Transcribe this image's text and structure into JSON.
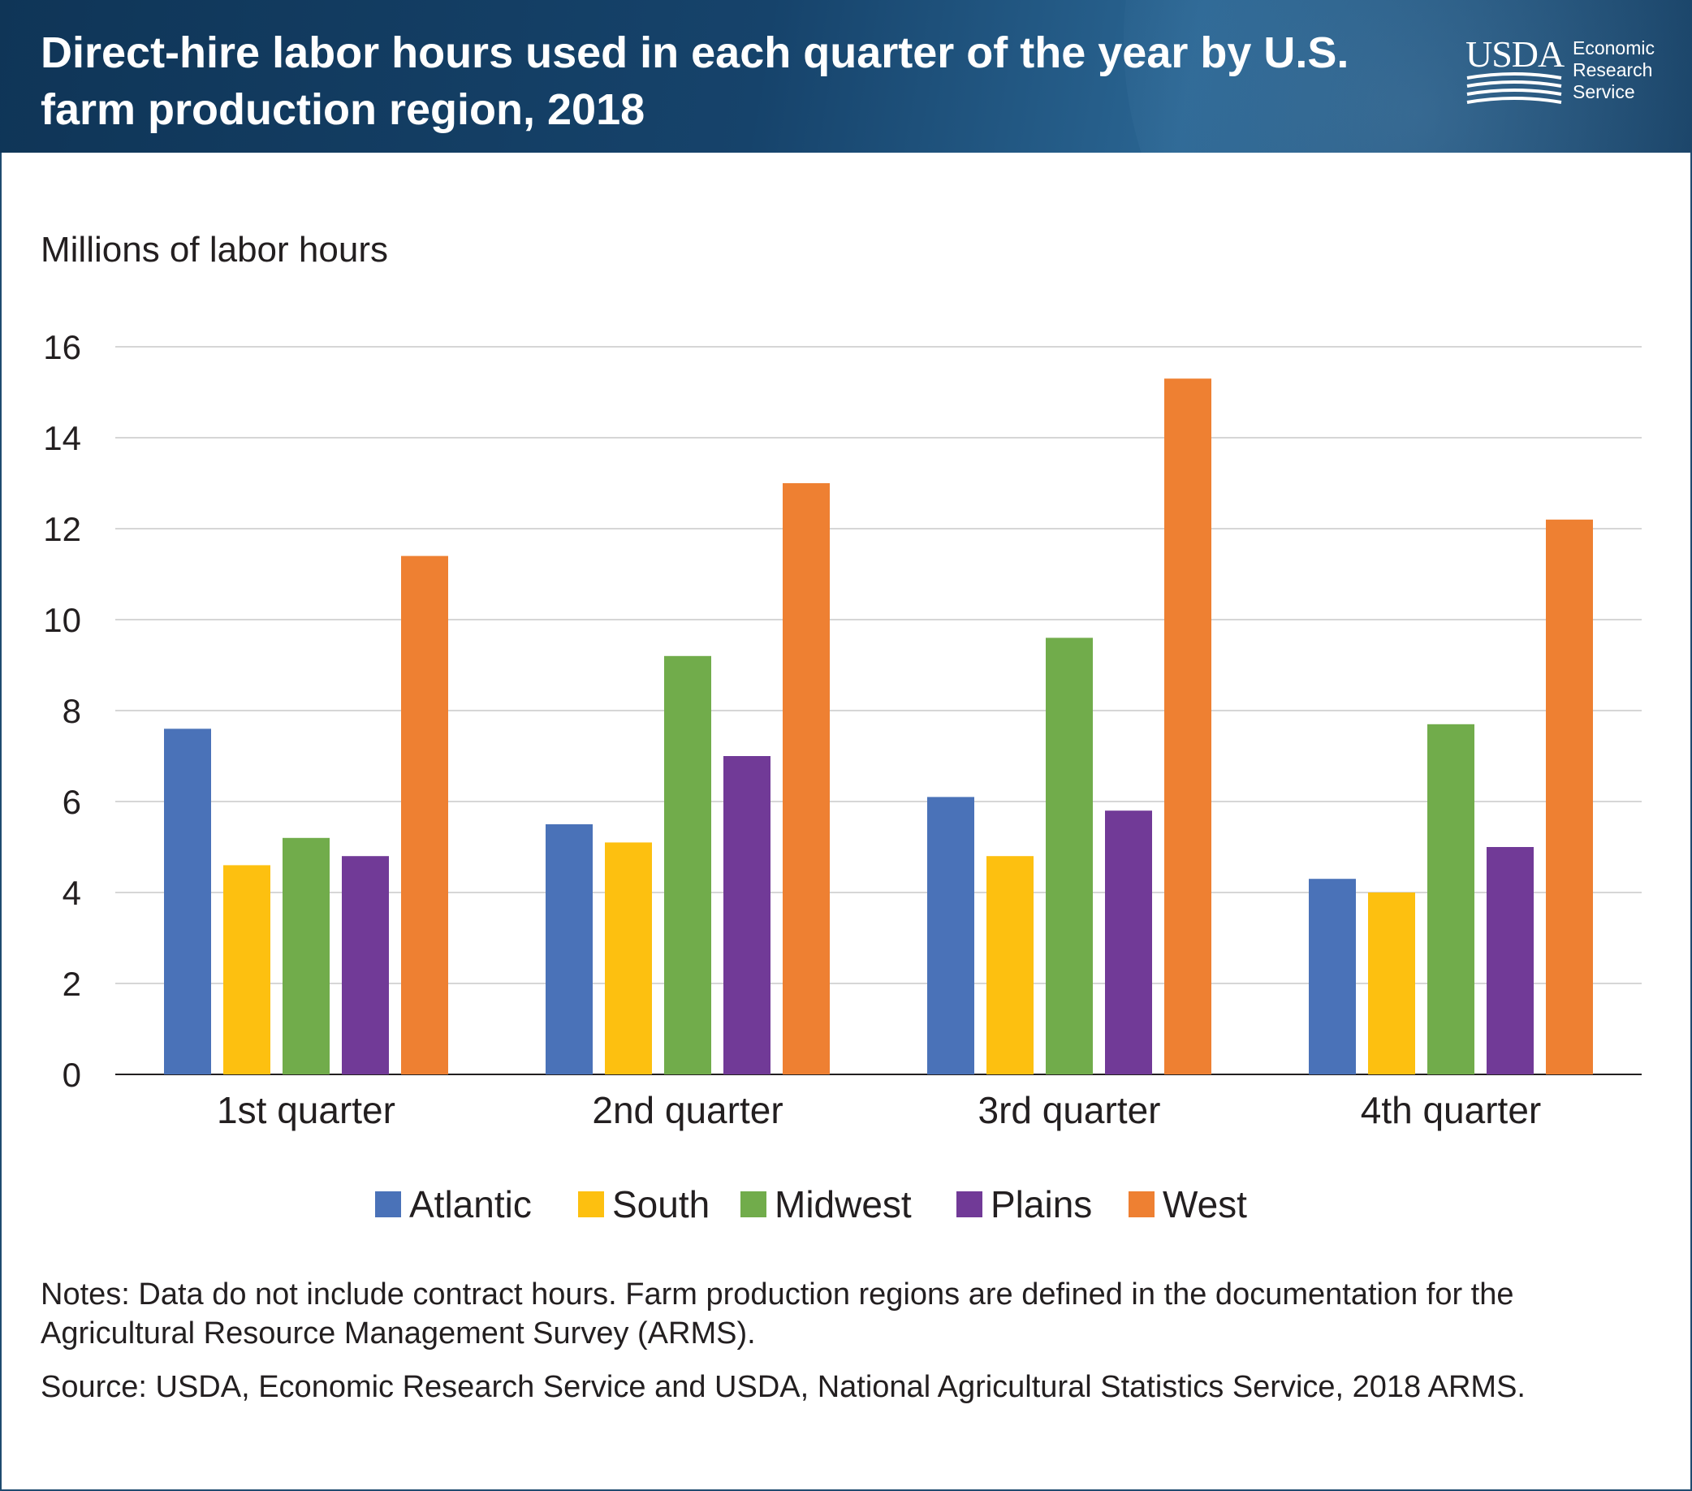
{
  "header": {
    "title": "Direct-hire labor hours used in each quarter of the year by U.S. farm production region, 2018",
    "logo": {
      "agency": "USDA",
      "lines": [
        "Economic",
        "Research",
        "Service"
      ]
    }
  },
  "chart_data": {
    "type": "bar",
    "title": "Direct-hire labor hours used in each quarter of the year by U.S. farm production region, 2018",
    "ylabel": "Millions of labor hours",
    "xlabel": "",
    "ylim": [
      0,
      16
    ],
    "yticks": [
      0,
      2,
      4,
      6,
      8,
      10,
      12,
      14,
      16
    ],
    "grid": true,
    "legend_position": "bottom",
    "categories": [
      "1st quarter",
      "2nd quarter",
      "3rd quarter",
      "4th quarter"
    ],
    "series": [
      {
        "name": "Atlantic",
        "color": "#4a72b8",
        "values": [
          7.6,
          5.5,
          6.1,
          4.3
        ]
      },
      {
        "name": "South",
        "color": "#fdc010",
        "values": [
          4.6,
          5.1,
          4.8,
          4.0
        ]
      },
      {
        "name": "Midwest",
        "color": "#71ac4b",
        "values": [
          5.2,
          9.2,
          9.6,
          7.7
        ]
      },
      {
        "name": "Plains",
        "color": "#713a97",
        "values": [
          4.8,
          7.0,
          5.8,
          5.0
        ]
      },
      {
        "name": "West",
        "color": "#ee8032",
        "values": [
          11.4,
          13.0,
          15.3,
          12.2
        ]
      }
    ]
  },
  "notes": {
    "notes_text": "Notes: Data do not include contract hours. Farm production regions are defined in the documentation for the Agricultural Resource Management Survey (ARMS).",
    "source_text": "Source: USDA, Economic Research Service and USDA, National Agricultural Statistics Service, 2018 ARMS."
  }
}
